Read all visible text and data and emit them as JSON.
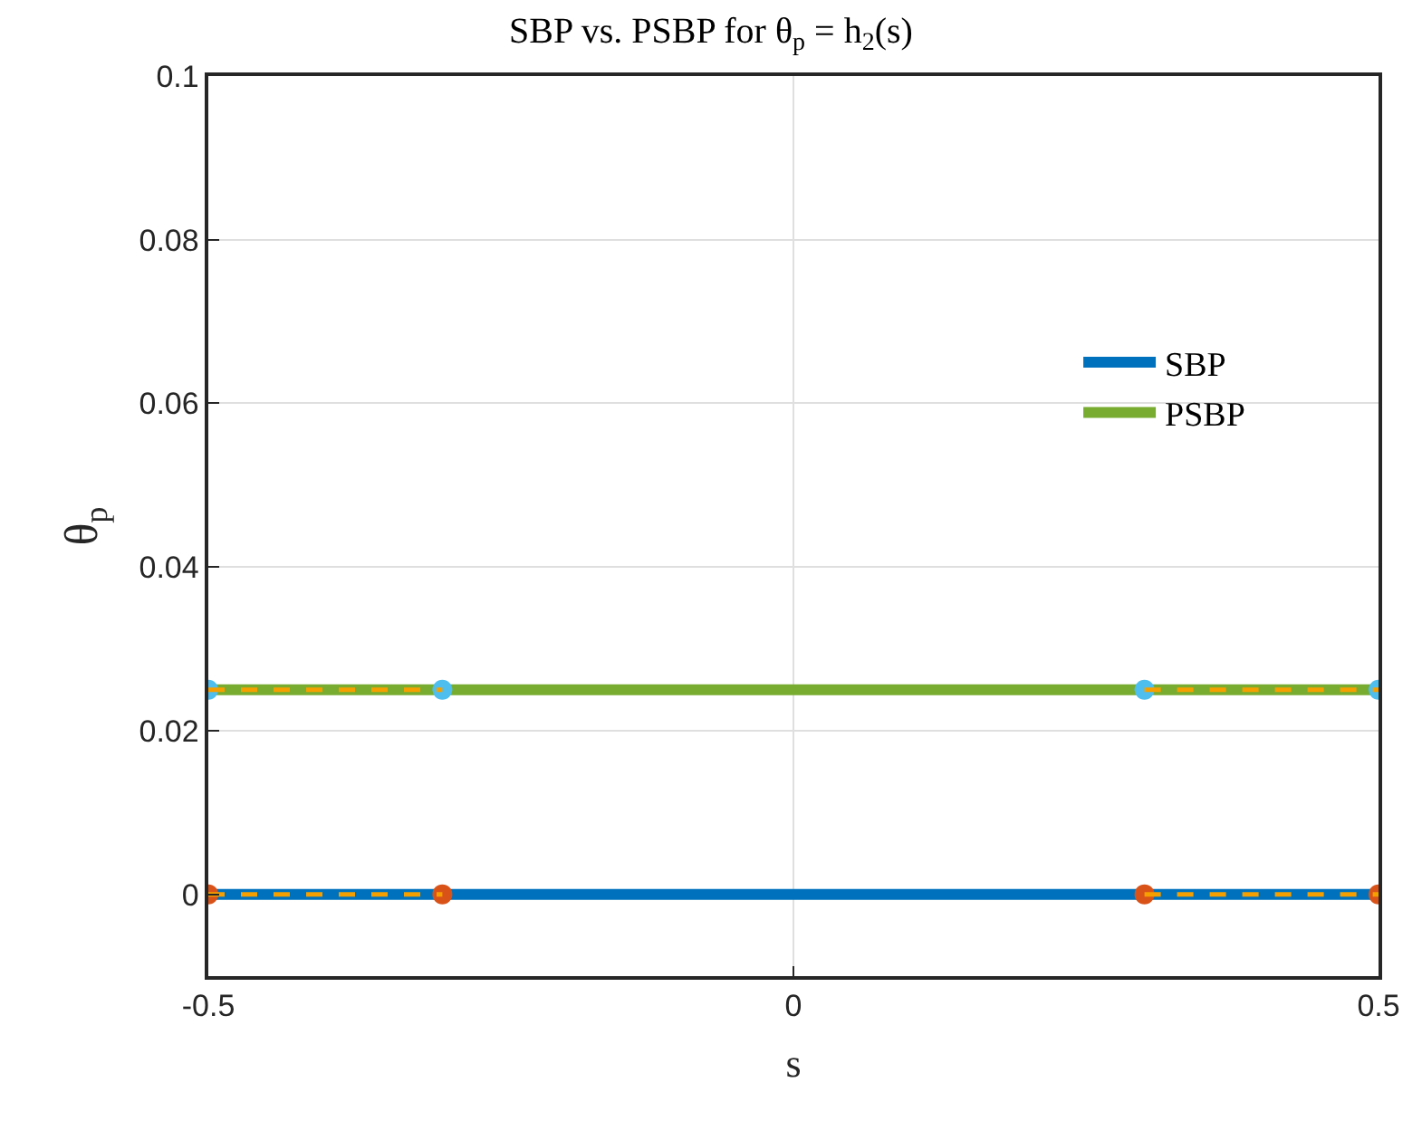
{
  "chart_data": {
    "type": "line",
    "title": "SBP vs. PSBP for θ$_{p}$ = h$_{2}$(s)",
    "xlabel": "s",
    "ylabel": "θ$_{p}$",
    "xlim": [
      -0.5,
      0.5
    ],
    "xticks": [
      -0.5,
      0,
      0.5
    ],
    "ylim": [
      -0.01,
      0.1
    ],
    "yticks": [
      0,
      0.02,
      0.04,
      0.06,
      0.08,
      0.1
    ],
    "grid": true,
    "legend": "right",
    "marker": "none",
    "line_style": "solid",
    "series": [
      {
        "name": "SBP",
        "color": "#0072bd",
        "x": [
          -0.5,
          0.5
        ],
        "values": [
          0,
          0
        ]
      },
      {
        "name": "PSBP",
        "color": "#77ac30",
        "x": [
          -0.5,
          0.5
        ],
        "values": [
          0.025,
          0.025
        ]
      },
      {
        "type": "scatter",
        "marker": "circle",
        "color": "#d95319",
        "x": [
          -0.5,
          -0.3,
          0.3,
          0.5
        ],
        "values": [
          0,
          0,
          0,
          0
        ]
      },
      {
        "type": "scatter",
        "marker": "circle",
        "color": "#4dbeee",
        "x": [
          -0.5,
          -0.3,
          0.3,
          0.5
        ],
        "values": [
          0.025,
          0.025,
          0.025,
          0.025
        ]
      },
      {
        "color": "#f5a000",
        "line_style": "dashed",
        "x": [
          -0.5,
          -0.3,
          0,
          0.3,
          0.5
        ],
        "values": [
          0,
          0,
          null,
          0,
          0
        ]
      },
      {
        "color": "#f5a000",
        "line_style": "dashed",
        "x": [
          -0.5,
          -0.3,
          0,
          0.3,
          0.5
        ],
        "values": [
          0.025,
          0.025,
          null,
          0.025,
          0.025
        ]
      }
    ]
  }
}
